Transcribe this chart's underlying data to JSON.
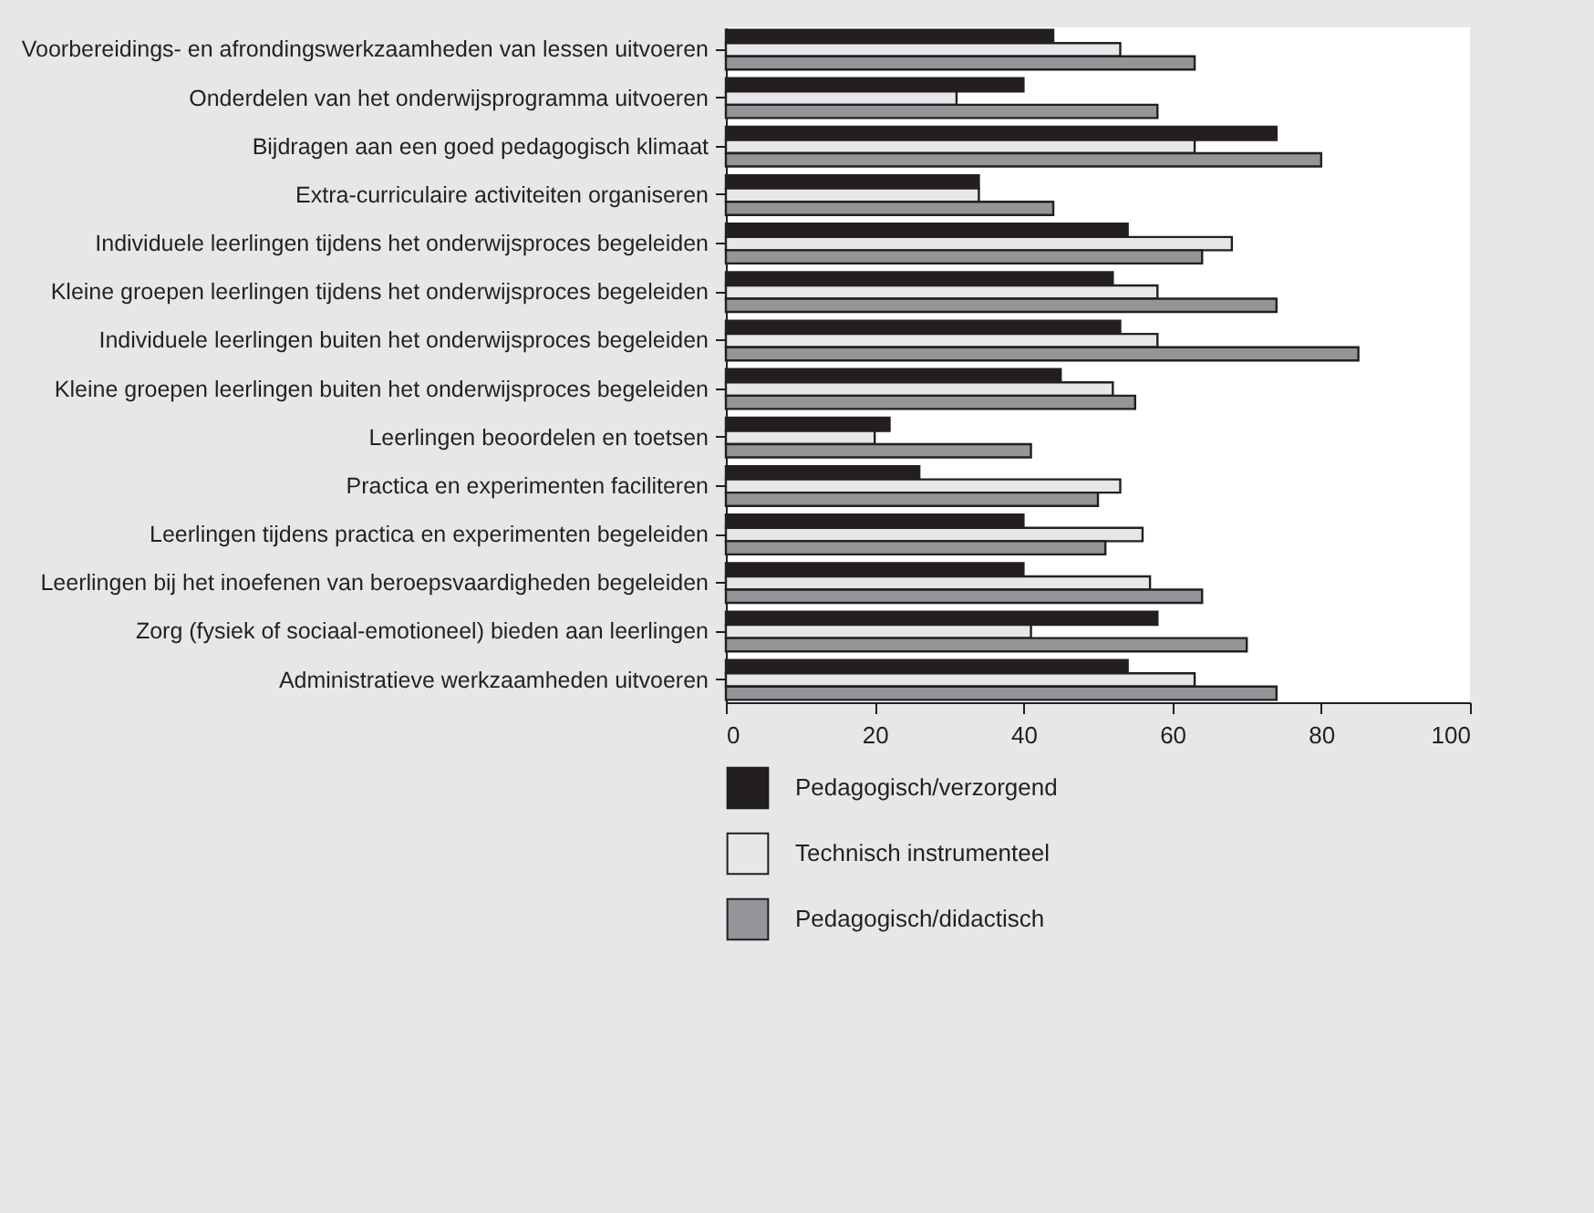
{
  "chart_data": {
    "type": "bar",
    "orientation": "horizontal",
    "legend": "bottom",
    "categories": [
      "Voorbereidings- en afrondingswerkzaamheden van lessen uitvoeren",
      "Onderdelen van het onderwijsprogramma uitvoeren",
      "Bijdragen aan een goed pedagogisch klimaat",
      "Extra-curriculaire activiteiten organiseren",
      "Individuele leerlingen tijdens het onderwijsproces begeleiden",
      "Kleine groepen leerlingen tijdens het onderwijsproces begeleiden",
      "Individuele leerlingen buiten het onderwijsproces begeleiden",
      "Kleine groepen leerlingen buiten het onderwijsproces begeleiden",
      "Leerlingen beoordelen en toetsen",
      "Practica en experimenten faciliteren",
      "Leerlingen tijdens practica en experimenten begeleiden",
      "Leerlingen bij het inoefenen van beroepsvaardigheden begeleiden",
      "Zorg (fysiek of sociaal-emotioneel) bieden aan leerlingen",
      "Administratieve werkzaamheden uitvoeren"
    ],
    "series": [
      {
        "name": "Pedagogisch/verzorgend",
        "color": "#231f20",
        "values": [
          44,
          40,
          74,
          34,
          54,
          52,
          53,
          45,
          22,
          26,
          40,
          40,
          58,
          54
        ]
      },
      {
        "name": "Technisch instrumenteel",
        "color": "#e6e7e8",
        "values": [
          53,
          31,
          63,
          34,
          68,
          58,
          58,
          52,
          20,
          53,
          56,
          57,
          41,
          63
        ]
      },
      {
        "name": "Pedagogisch/didactisch",
        "color": "#939598",
        "values": [
          63,
          58,
          80,
          44,
          64,
          74,
          85,
          55,
          41,
          50,
          51,
          64,
          70,
          74
        ]
      }
    ],
    "xlim": [
      0,
      100
    ],
    "xticks": [
      0,
      20,
      40,
      60,
      80,
      100
    ]
  }
}
